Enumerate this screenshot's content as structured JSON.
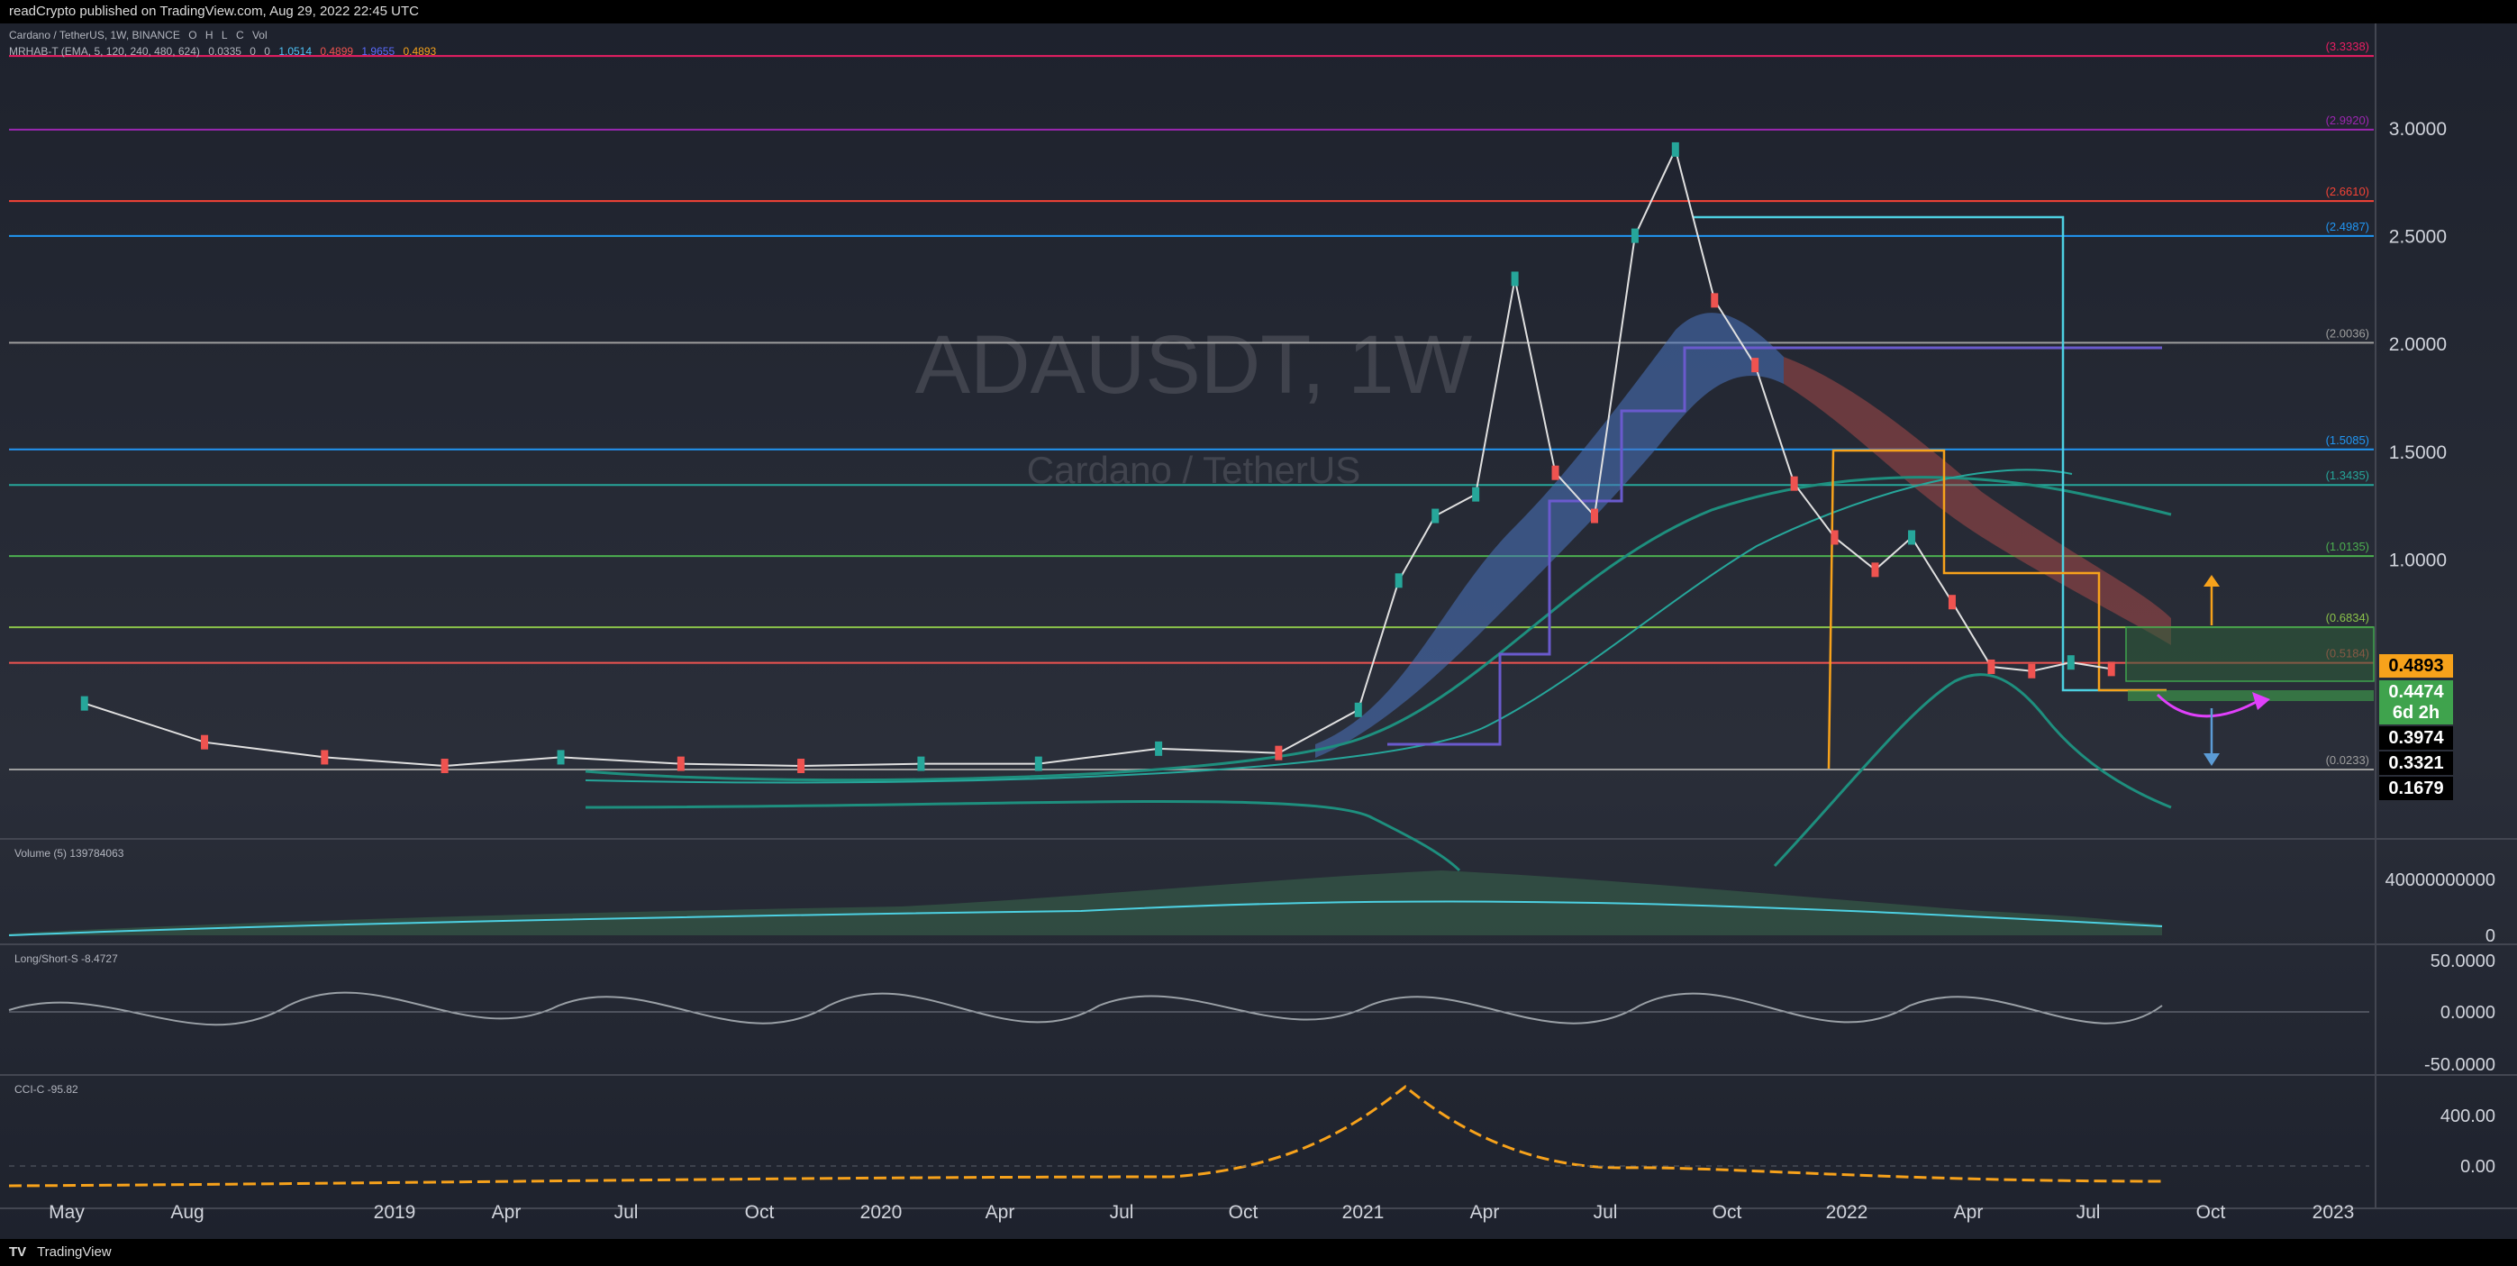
{
  "header": {
    "published_text": "readCrypto published on TradingView.com, Aug 29, 2022 22:45 UTC"
  },
  "footer": {
    "brand": "TradingView"
  },
  "legend": {
    "main": "Cardano / TetherUS, 1W, BINANCE",
    "ohlc": [
      "O",
      "H",
      "L",
      "C"
    ],
    "vol_label": "Vol",
    "indicator": "MRHAB-T (EMA, 5, 120, 240, 480, 624)",
    "indicator_values": [
      "0.0335",
      "0",
      "0",
      "1.0514",
      "0.4899",
      "1.9655",
      "0.4893"
    ]
  },
  "watermark": {
    "symbol": "ADAUSDT, 1W",
    "name": "Cardano / TetherUS"
  },
  "colors": {
    "background": "#131722",
    "up": "#26a69a",
    "down": "#ef5350",
    "ribbon_blue": "#5a8fd6",
    "ribbon_red": "#d16a6a",
    "orange": "#f7a21b",
    "magenta": "#e040fb",
    "cyan": "#4dd0e1",
    "green_box": "#3fa34d"
  },
  "chart_data": {
    "type": "line",
    "symbol": "ADAUSDT",
    "timeframe": "1W",
    "x_tick_labels": [
      "May",
      "Aug",
      "2019",
      "Apr",
      "Jul",
      "Oct",
      "2020",
      "Apr",
      "Jul",
      "Oct",
      "2021",
      "Apr",
      "Jul",
      "Oct",
      "2022",
      "Apr",
      "Jul",
      "Oct",
      "2023"
    ],
    "y_axis_labels": [
      "3.0000",
      "2.5000",
      "2.0000",
      "1.5000",
      "1.0000"
    ],
    "ylim": [
      0,
      3.45
    ],
    "price_series_approx": {
      "x": [
        "2018-05",
        "2018-08",
        "2018-11",
        "2019-02",
        "2019-05",
        "2019-08",
        "2019-11",
        "2020-02",
        "2020-05",
        "2020-08",
        "2020-11",
        "2021-01",
        "2021-02",
        "2021-03",
        "2021-04",
        "2021-05",
        "2021-06",
        "2021-07",
        "2021-08",
        "2021-09",
        "2021-10",
        "2021-11",
        "2021-12",
        "2022-01",
        "2022-02",
        "2022-03",
        "2022-04",
        "2022-05",
        "2022-06",
        "2022-07",
        "2022-08"
      ],
      "y": [
        0.33,
        0.15,
        0.08,
        0.04,
        0.08,
        0.05,
        0.04,
        0.05,
        0.05,
        0.12,
        0.1,
        0.3,
        0.9,
        1.2,
        1.3,
        2.3,
        1.4,
        1.2,
        2.5,
        2.9,
        2.2,
        1.9,
        1.35,
        1.1,
        0.95,
        1.1,
        0.8,
        0.5,
        0.48,
        0.52,
        0.49
      ]
    },
    "horizontal_levels": [
      {
        "label": "(3.3338)",
        "value": 3.3338,
        "color": "#e91e63"
      },
      {
        "label": "(2.9920)",
        "value": 2.992,
        "color": "#9c27b0"
      },
      {
        "label": "(2.6610)",
        "value": 2.661,
        "color": "#f44336"
      },
      {
        "label": "(2.4987)",
        "value": 2.4987,
        "color": "#2196f3"
      },
      {
        "label": "(2.0036)",
        "value": 2.0036,
        "color": "#9e9e9e"
      },
      {
        "label": "(1.5085)",
        "value": 1.5085,
        "color": "#2196f3"
      },
      {
        "label": "(1.3435)",
        "value": 1.3435,
        "color": "#26a69a"
      },
      {
        "label": "(1.0135)",
        "value": 1.0135,
        "color": "#4caf50"
      },
      {
        "label": "(0.6834)",
        "value": 0.6834,
        "color": "#8bc34a"
      },
      {
        "label": "(0.5184)",
        "value": 0.5184,
        "color": "#ef5350"
      },
      {
        "label": "(0.0233)",
        "value": 0.0233,
        "color": "#9e9e9e"
      }
    ],
    "price_tags": [
      {
        "label": "0.4893",
        "value": 0.4893,
        "bg": "#f7a21b",
        "fg": "#000000"
      },
      {
        "label": "0.4474",
        "value": 0.4474,
        "bg": "#3fa34d",
        "fg": "#ffffff"
      },
      {
        "label": "6d 2h",
        "value": 0.33,
        "bg": "#3fa34d",
        "fg": "#ffffff"
      },
      {
        "label": "0.3974",
        "value": 0.3974,
        "bg": "#000000",
        "fg": "#ffffff"
      },
      {
        "label": "0.3321",
        "value": 0.3321,
        "bg": "#000000",
        "fg": "#ffffff"
      },
      {
        "label": "0.1679",
        "value": 0.1679,
        "bg": "#000000",
        "fg": "#ffffff"
      }
    ],
    "panes": [
      {
        "name": "Volume (5)",
        "value_label": "139784063",
        "axis_labels": [
          "40000000000",
          "0"
        ]
      },
      {
        "name": "Long/Short-S",
        "value_label": "-8.4727",
        "axis_labels": [
          "50.0000",
          "0.0000",
          "-50.0000"
        ]
      },
      {
        "name": "CCI-C",
        "value_label": "-95.82",
        "axis_labels": [
          "400.00",
          "0.00"
        ]
      }
    ]
  }
}
